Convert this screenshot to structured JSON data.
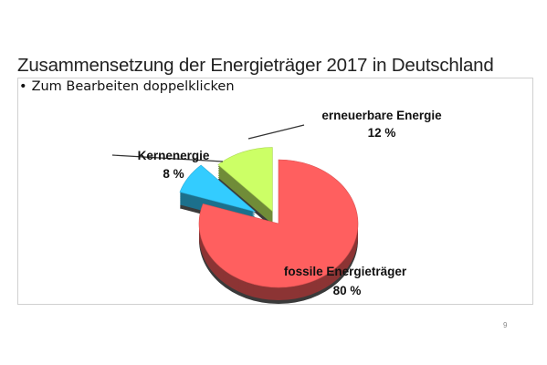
{
  "slide": {
    "title": "Zusammensetzung der Energieträger 2017 in Deutschland",
    "bullet": "Zum Bearbeiten doppelklicken",
    "page_number": "9"
  },
  "chart_data": {
    "type": "pie",
    "title": "",
    "slices": [
      {
        "name": "fossile Energieträger",
        "value": 80,
        "label": "80 %",
        "color": "#ff5f5f"
      },
      {
        "name": "Kernenergie",
        "value": 8,
        "label": "8 %",
        "color": "#33ccff"
      },
      {
        "name": "erneuerbare Energie",
        "value": 12,
        "label": "12 %",
        "color": "#ccff66"
      }
    ],
    "start_angle_deg": 0,
    "direction": "clockwise",
    "exploded": [
      "Kernenergie",
      "erneuerbare Energie"
    ],
    "style": "3d"
  }
}
